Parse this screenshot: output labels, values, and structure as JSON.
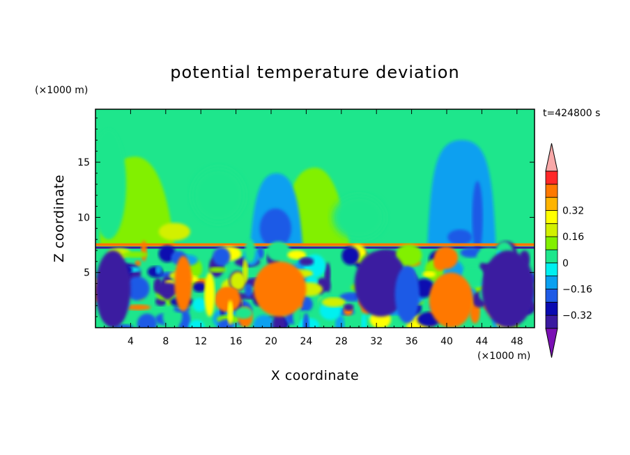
{
  "chart_data": {
    "type": "heatmap",
    "title": "potential temperature deviation",
    "xlabel": "X coordinate",
    "ylabel": "Z coordinate",
    "x_unit": "(×1000 m)",
    "y_unit": "(×1000 m)",
    "time_label": "t=424800 s",
    "xlim": [
      0,
      50
    ],
    "ylim": [
      0,
      19.8
    ],
    "x_ticks": [
      4,
      8,
      12,
      16,
      20,
      24,
      28,
      32,
      36,
      40,
      44,
      48
    ],
    "y_ticks": [
      5,
      10,
      15
    ],
    "colorbar": {
      "levels": [
        -0.4,
        -0.32,
        -0.24,
        -0.16,
        -0.08,
        0,
        0.08,
        0.16,
        0.24,
        0.32,
        0.4
      ],
      "tick_values": [
        0.32,
        0.16,
        0,
        -0.16,
        -0.32
      ],
      "tick_labels": [
        "0.32",
        "0.16",
        "0",
        "−0.16",
        "−0.32"
      ],
      "colors": [
        "#7a10b4",
        "#3a1aa0",
        "#0a0ab0",
        "#1e5ae6",
        "#0aa0f0",
        "#00f0f0",
        "#1ee68c",
        "#82f000",
        "#d2f000",
        "#ffff00",
        "#ffb400",
        "#ff7800",
        "#ff2828",
        "#f8a8a8"
      ],
      "extend": "both"
    },
    "regions": {
      "upper_background": 0.04,
      "inversion_layer_height": 7.4,
      "yellow_plumes": [
        {
          "x": [
            1,
            7
          ],
          "z": [
            8,
            16
          ],
          "value": 0.14
        },
        {
          "x": [
            22,
            28
          ],
          "z": [
            8,
            16
          ],
          "value": 0.14
        }
      ],
      "cool_columns": [
        {
          "x": [
            18,
            23
          ],
          "z": [
            7.5,
            14
          ],
          "value": -0.12
        },
        {
          "x": [
            38,
            45
          ],
          "z": [
            7.5,
            16.5
          ],
          "value": -0.12
        }
      ],
      "warm_lower_patches": [
        {
          "x": [
            18,
            24
          ],
          "z": [
            1,
            6
          ],
          "value": 0.4
        },
        {
          "x": [
            38,
            43
          ],
          "z": [
            0,
            5
          ],
          "value": 0.4
        }
      ],
      "cold_lower_patches": [
        {
          "x": [
            0,
            4
          ],
          "z": [
            0,
            7
          ],
          "value": -0.38
        },
        {
          "x": [
            44,
            50
          ],
          "z": [
            0,
            7
          ],
          "value": -0.38
        }
      ]
    }
  }
}
